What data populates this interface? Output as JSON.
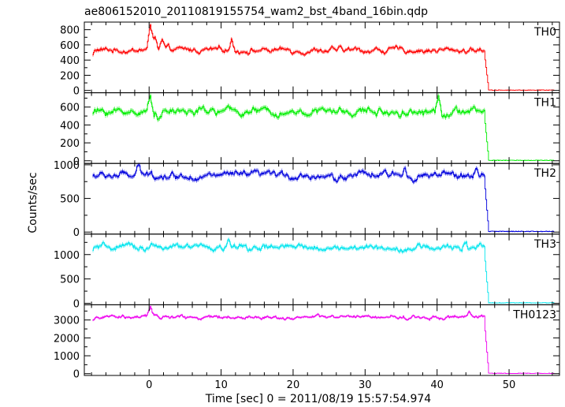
{
  "chart_data": {
    "type": "line",
    "title": "ae806152010_20110819155754_wam2_bst_4band_16bin.qdp",
    "xlabel": "Time [sec] 0 = 2011/08/19 15:57:54.974",
    "ylabel": "Counts/sec",
    "xlim": [
      -9,
      57
    ],
    "xticks": [
      0,
      10,
      20,
      30,
      40,
      50
    ],
    "grid": false,
    "legend": "none",
    "panels": [
      {
        "name": "TH0",
        "color": "#ff0000",
        "ylim": [
          -30,
          900
        ],
        "yticks": [
          0,
          200,
          400,
          600,
          800
        ],
        "baseline": 530,
        "noise": 40,
        "background": 5,
        "drop_start": 46.6,
        "drop_end": 47.2,
        "features": [
          {
            "x": 0.2,
            "y": 880
          },
          {
            "x": 0.8,
            "y": 720
          },
          {
            "x": 1.8,
            "y": 650
          },
          {
            "x": 11.5,
            "y": 680
          },
          {
            "x": -8.0,
            "y": 430
          }
        ]
      },
      {
        "name": "TH1",
        "color": "#00ee00",
        "ylim": [
          -30,
          760
        ],
        "yticks": [
          0,
          200,
          400,
          600
        ],
        "baseline": 550,
        "noise": 45,
        "background": 5,
        "drop_start": 46.6,
        "drop_end": 47.2,
        "features": [
          {
            "x": 0.2,
            "y": 720
          },
          {
            "x": 1.5,
            "y": 470
          },
          {
            "x": 40.2,
            "y": 720
          },
          {
            "x": -8.0,
            "y": 520
          }
        ]
      },
      {
        "name": "TH2",
        "color": "#0000dd",
        "ylim": [
          -30,
          1020
        ],
        "yticks": [
          0,
          500,
          1000
        ],
        "baseline": 840,
        "noise": 55,
        "background": 10,
        "drop_start": 46.6,
        "drop_end": 47.2,
        "features": [
          {
            "x": -1.5,
            "y": 960
          },
          {
            "x": 0.3,
            "y": 940
          },
          {
            "x": 35.5,
            "y": 950
          },
          {
            "x": 26.0,
            "y": 700
          },
          {
            "x": 45.5,
            "y": 900
          }
        ]
      },
      {
        "name": "TH3",
        "color": "#00e5ee",
        "ylim": [
          -30,
          1420
        ],
        "yticks": [
          0,
          500,
          1000
        ],
        "baseline": 1140,
        "noise": 70,
        "background": 10,
        "drop_start": 46.6,
        "drop_end": 47.2,
        "features": [
          {
            "x": 0.3,
            "y": 1260
          },
          {
            "x": 11.0,
            "y": 1300
          },
          {
            "x": 44.0,
            "y": 1300
          },
          {
            "x": -8.0,
            "y": 1050
          }
        ]
      },
      {
        "name": "TH0123",
        "color": "#ee00ee",
        "ylim": [
          -100,
          3850
        ],
        "yticks": [
          0,
          1000,
          2000,
          3000
        ],
        "baseline": 3150,
        "noise": 110,
        "background": 20,
        "drop_start": 46.6,
        "drop_end": 47.2,
        "features": [
          {
            "x": 0.2,
            "y": 3700
          },
          {
            "x": 1.0,
            "y": 3350
          },
          {
            "x": -8.0,
            "y": 2900
          },
          {
            "x": 44.5,
            "y": 3400
          }
        ]
      }
    ]
  }
}
